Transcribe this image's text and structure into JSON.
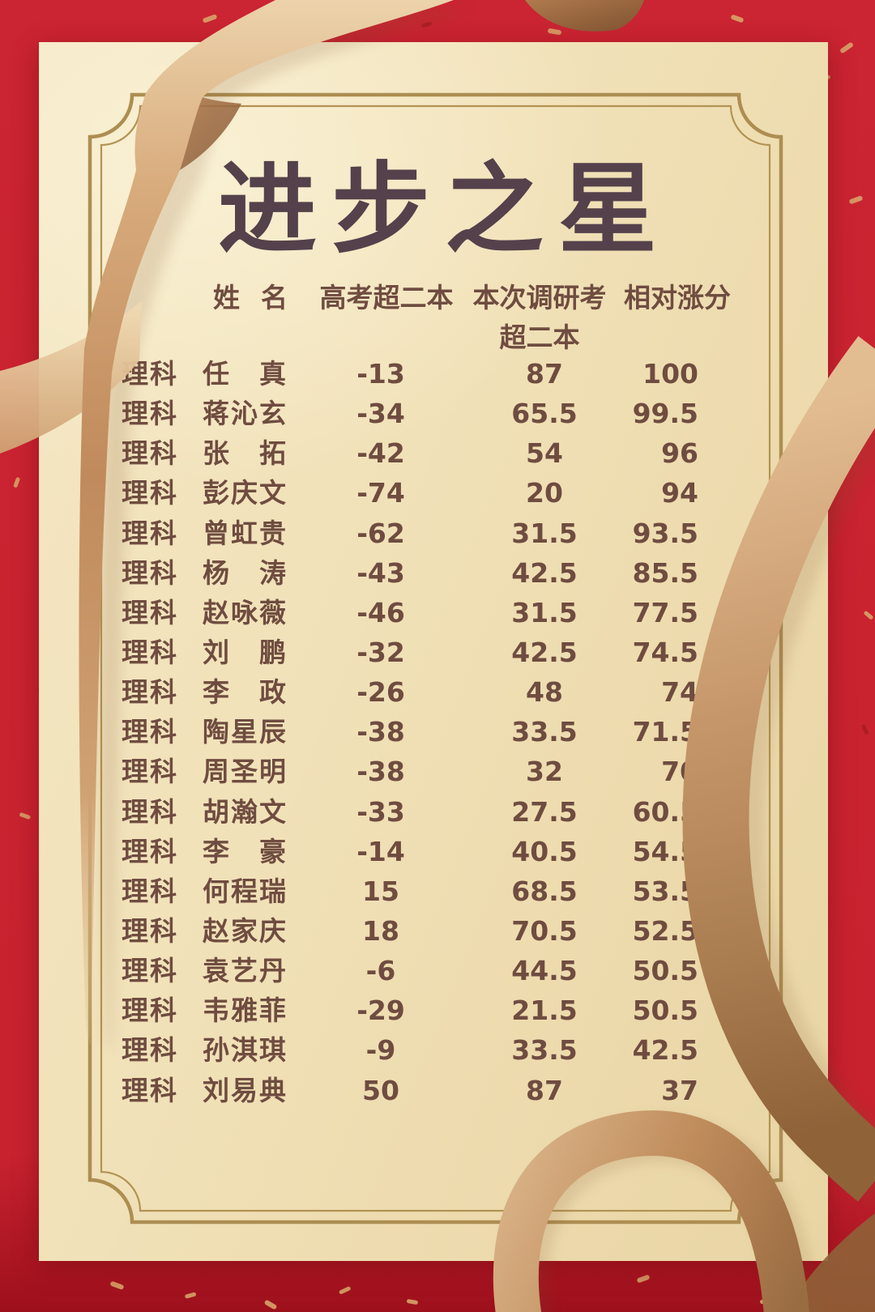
{
  "title": "进步之星",
  "palette": {
    "background_red": "#c8222f",
    "background_red_dark": "#9c101c",
    "paper_cream": "#f0e0b6",
    "frame_gold": "#b09155",
    "text_brown": "#6f4c40",
    "title_plum": "#54414b",
    "ribbon_light": "#eacfa6",
    "ribbon_mid": "#c9976a",
    "ribbon_dark": "#8f6238"
  },
  "table": {
    "header": {
      "name": "姓名",
      "gaokao": "高考超二本",
      "survey_line1": "本次调研考",
      "survey_line2": "超二本",
      "gain": "相对涨分"
    },
    "rows": [
      {
        "track": "理科",
        "name": "任真",
        "gaokao": "-13",
        "survey": "87",
        "gain": "100"
      },
      {
        "track": "理科",
        "name": "蒋沁玄",
        "gaokao": "-34",
        "survey": "65.5",
        "gain": "99.5"
      },
      {
        "track": "理科",
        "name": "张拓",
        "gaokao": "-42",
        "survey": "54",
        "gain": "96"
      },
      {
        "track": "理科",
        "name": "彭庆文",
        "gaokao": "-74",
        "survey": "20",
        "gain": "94"
      },
      {
        "track": "理科",
        "name": "曾虹贵",
        "gaokao": "-62",
        "survey": "31.5",
        "gain": "93.5"
      },
      {
        "track": "理科",
        "name": "杨涛",
        "gaokao": "-43",
        "survey": "42.5",
        "gain": "85.5"
      },
      {
        "track": "理科",
        "name": "赵咏薇",
        "gaokao": "-46",
        "survey": "31.5",
        "gain": "77.5"
      },
      {
        "track": "理科",
        "name": "刘鹏",
        "gaokao": "-32",
        "survey": "42.5",
        "gain": "74.5"
      },
      {
        "track": "理科",
        "name": "李政",
        "gaokao": "-26",
        "survey": "48",
        "gain": "74"
      },
      {
        "track": "理科",
        "name": "陶星辰",
        "gaokao": "-38",
        "survey": "33.5",
        "gain": "71.5"
      },
      {
        "track": "理科",
        "name": "周圣明",
        "gaokao": "-38",
        "survey": "32",
        "gain": "70"
      },
      {
        "track": "理科",
        "name": "胡瀚文",
        "gaokao": "-33",
        "survey": "27.5",
        "gain": "60.5"
      },
      {
        "track": "理科",
        "name": "李豪",
        "gaokao": "-14",
        "survey": "40.5",
        "gain": "54.5"
      },
      {
        "track": "理科",
        "name": "何程瑞",
        "gaokao": "15",
        "survey": "68.5",
        "gain": "53.5"
      },
      {
        "track": "理科",
        "name": "赵家庆",
        "gaokao": "18",
        "survey": "70.5",
        "gain": "52.5"
      },
      {
        "track": "理科",
        "name": "袁艺丹",
        "gaokao": "-6",
        "survey": "44.5",
        "gain": "50.5"
      },
      {
        "track": "理科",
        "name": "韦雅菲",
        "gaokao": "-29",
        "survey": "21.5",
        "gain": "50.5"
      },
      {
        "track": "理科",
        "name": "孙淇琪",
        "gaokao": "-9",
        "survey": "33.5",
        "gain": "42.5"
      },
      {
        "track": "理科",
        "name": "刘易典",
        "gaokao": "50",
        "survey": "87",
        "gain": "37"
      }
    ]
  }
}
